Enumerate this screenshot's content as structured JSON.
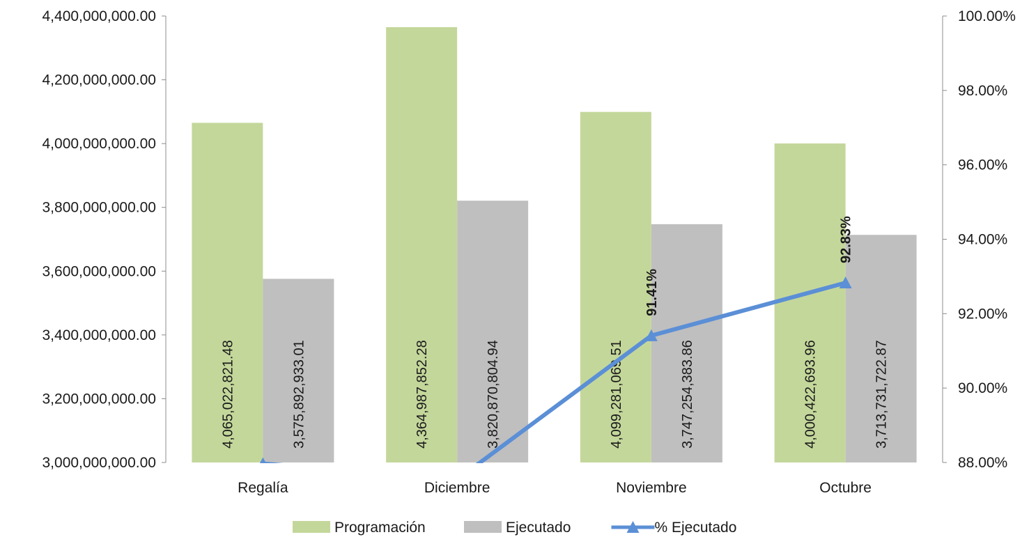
{
  "chart_data": {
    "type": "bar",
    "categories": [
      "Regalía",
      "Diciembre",
      "Noviembre",
      "Octubre"
    ],
    "series": [
      {
        "name": "Programación",
        "kind": "bar",
        "axis": "left",
        "color": "#c4d79b",
        "values": [
          4065022821.48,
          4364987852.28,
          4099281069.51,
          4000422693.96
        ],
        "labels": [
          "4,065,022,821.48",
          "4,364,987,852.28",
          "4,099,281,069.51",
          "4,000,422,693.96"
        ]
      },
      {
        "name": "Ejecutado",
        "kind": "bar",
        "axis": "left",
        "color": "#bfbfbf",
        "values": [
          3575892933.01,
          3820870804.94,
          3747254383.86,
          3713731722.87
        ],
        "labels": [
          "3,575,892,933.01",
          "3,820,870,804.94",
          "3,747,254,383.86",
          "3,713,731,722.87"
        ]
      },
      {
        "name": "% Ejecutado",
        "kind": "line",
        "axis": "right",
        "color": "#5b8fd6",
        "marker": "triangle",
        "values": [
          87.97,
          87.54,
          91.41,
          92.83
        ],
        "labels": [
          "",
          "",
          "91.41%",
          "92.83%"
        ]
      }
    ],
    "y_left": {
      "ylim": [
        3000000000,
        4400000000
      ],
      "ticks": [
        "3,000,000,000.00",
        "3,200,000,000.00",
        "3,400,000,000.00",
        "3,600,000,000.00",
        "3,800,000,000.00",
        "4,000,000,000.00",
        "4,200,000,000.00",
        "4,400,000,000.00"
      ]
    },
    "y_right": {
      "ylim": [
        88,
        100
      ],
      "ticks": [
        "88.00%",
        "90.00%",
        "92.00%",
        "94.00%",
        "96.00%",
        "98.00%",
        "100.00%"
      ]
    },
    "grid": false,
    "legend": "bottom",
    "title": "",
    "xlabel": "",
    "ylabel": ""
  }
}
